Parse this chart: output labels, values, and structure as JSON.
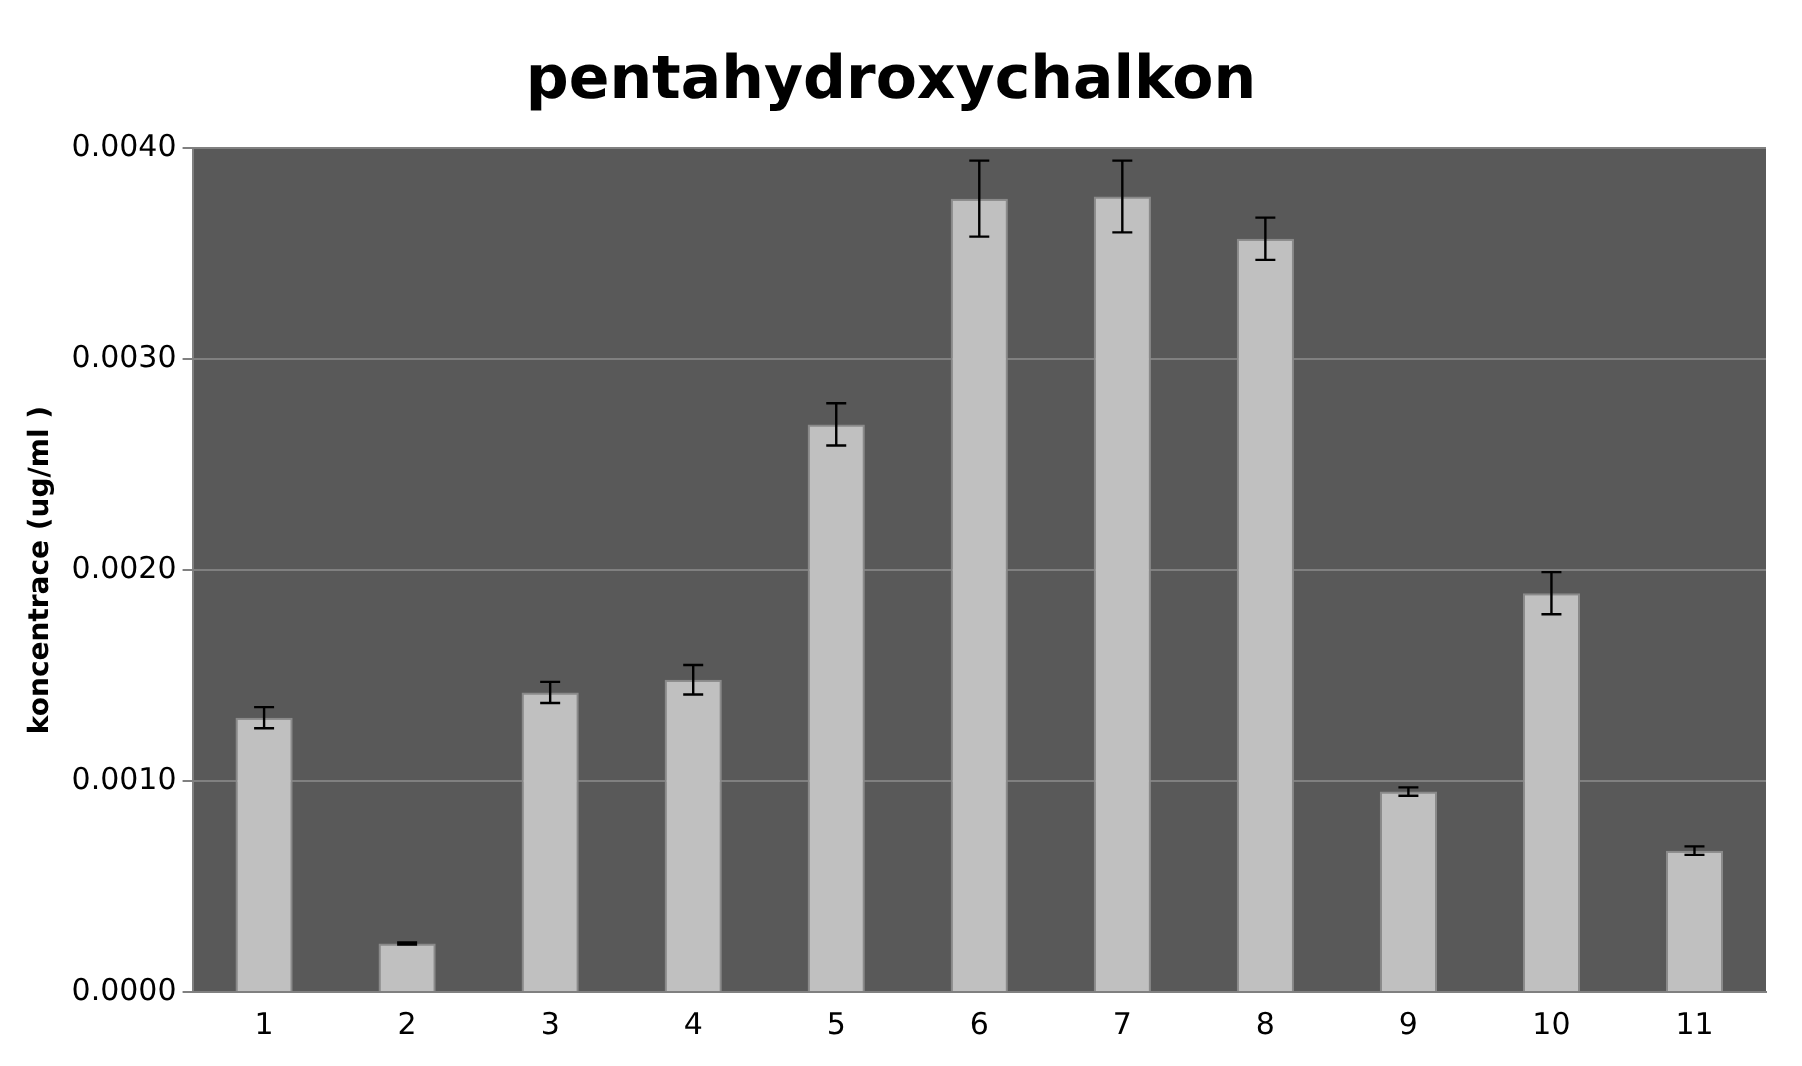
{
  "chart_data": {
    "type": "bar",
    "title": "pentahydroxychalkon",
    "ylabel": "koncentrace (ug/ml )",
    "categories": [
      "1",
      "2",
      "3",
      "4",
      "5",
      "6",
      "7",
      "8",
      "9",
      "10",
      "11"
    ],
    "values": [
      0.0013,
      0.00023,
      0.00142,
      0.00148,
      0.00269,
      0.00376,
      0.00377,
      0.00357,
      0.00095,
      0.00189,
      0.00067
    ],
    "errors": [
      5e-05,
      5e-06,
      5e-05,
      7e-05,
      0.0001,
      0.00018,
      0.00017,
      0.0001,
      2e-05,
      0.0001,
      2e-05
    ],
    "color": "#c0c0c0",
    "ylim": [
      0,
      0.004
    ],
    "yticks": [
      {
        "value": 0,
        "label": "0.0000"
      },
      {
        "value": 0.001,
        "label": "0.0010"
      },
      {
        "value": 0.002,
        "label": "0.0020"
      },
      {
        "value": 0.003,
        "label": "0.0030"
      },
      {
        "value": 0.004,
        "label": "0.0040"
      }
    ],
    "grid": "y",
    "legend": false
  }
}
